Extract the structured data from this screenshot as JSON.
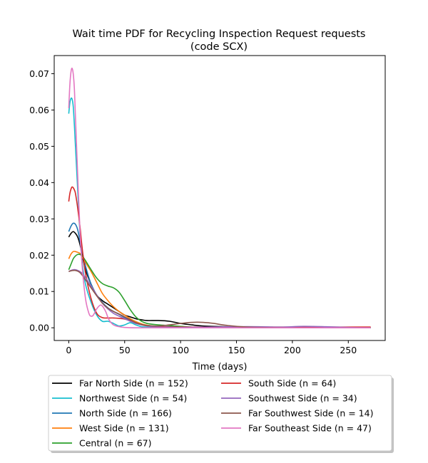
{
  "chart_data": {
    "type": "line",
    "title_line1": "Wait time PDF for Recycling Inspection Request  requests",
    "title_line2": "(code SCX)",
    "xlabel": "Time (days)",
    "ylabel": "",
    "xlim": [
      -13,
      283
    ],
    "ylim": [
      -0.0035,
      0.075
    ],
    "xticks": [
      0,
      50,
      100,
      150,
      200,
      250
    ],
    "xtick_labels": [
      "0",
      "50",
      "100",
      "150",
      "200",
      "250"
    ],
    "yticks": [
      0.0,
      0.01,
      0.02,
      0.03,
      0.04,
      0.05,
      0.06,
      0.07
    ],
    "ytick_labels": [
      "0.00",
      "0.01",
      "0.02",
      "0.03",
      "0.04",
      "0.05",
      "0.06",
      "0.07"
    ],
    "grid": false,
    "legend_position": "below",
    "series": [
      {
        "name": "Far North Side (n = 152)",
        "color": "#000000",
        "x": [
          0,
          2,
          4,
          6,
          8,
          10,
          12,
          15,
          20,
          25,
          30,
          35,
          40,
          45,
          50,
          55,
          60,
          65,
          70,
          80,
          90,
          100,
          110,
          120,
          140,
          160,
          200,
          240,
          270
        ],
        "y": [
          0.025,
          0.026,
          0.0265,
          0.026,
          0.025,
          0.023,
          0.02,
          0.016,
          0.012,
          0.009,
          0.0075,
          0.0065,
          0.0055,
          0.0045,
          0.0035,
          0.003,
          0.0025,
          0.0022,
          0.002,
          0.002,
          0.0018,
          0.0012,
          0.0008,
          0.0005,
          0.0003,
          0.0002,
          0.0001,
          0.0001,
          0.0
        ]
      },
      {
        "name": "Northwest Side (n = 54)",
        "color": "#17becf",
        "x": [
          0,
          1,
          2,
          3,
          4,
          5,
          6,
          8,
          10,
          12,
          15,
          20,
          25,
          30,
          35,
          40,
          45,
          50,
          55,
          60,
          65,
          70,
          80,
          100,
          150,
          200,
          270
        ],
        "y": [
          0.059,
          0.062,
          0.0632,
          0.063,
          0.061,
          0.056,
          0.05,
          0.038,
          0.026,
          0.018,
          0.012,
          0.007,
          0.0035,
          0.0018,
          0.0018,
          0.0012,
          0.0005,
          0.0008,
          0.0014,
          0.0008,
          0.0003,
          0.0002,
          0.0001,
          0.0,
          0.0,
          0.0,
          0.0
        ]
      },
      {
        "name": "North Side (n = 166)",
        "color": "#1f77b4",
        "x": [
          0,
          2,
          4,
          6,
          8,
          10,
          12,
          15,
          20,
          25,
          30,
          35,
          40,
          45,
          50,
          55,
          60,
          65,
          70,
          80,
          100,
          120,
          150,
          200,
          270
        ],
        "y": [
          0.0265,
          0.028,
          0.0288,
          0.0285,
          0.027,
          0.024,
          0.021,
          0.017,
          0.012,
          0.009,
          0.007,
          0.0055,
          0.0045,
          0.0037,
          0.0028,
          0.002,
          0.0015,
          0.001,
          0.0007,
          0.0004,
          0.0002,
          0.0001,
          0.0001,
          0.0,
          0.0
        ]
      },
      {
        "name": "West Side (n = 131)",
        "color": "#ff7f0e",
        "x": [
          0,
          2,
          4,
          6,
          8,
          10,
          12,
          15,
          20,
          25,
          30,
          35,
          40,
          45,
          50,
          55,
          60,
          65,
          70,
          80,
          100,
          150,
          200,
          270
        ],
        "y": [
          0.019,
          0.0203,
          0.021,
          0.021,
          0.0208,
          0.0205,
          0.0195,
          0.018,
          0.0155,
          0.0125,
          0.0095,
          0.0075,
          0.0058,
          0.0045,
          0.0035,
          0.0025,
          0.0017,
          0.0011,
          0.0007,
          0.0003,
          0.0001,
          0.0001,
          0.0001,
          0.0002
        ]
      },
      {
        "name": "Central (n = 67)",
        "color": "#2ca02c",
        "x": [
          0,
          2,
          4,
          6,
          8,
          10,
          12,
          15,
          20,
          25,
          30,
          35,
          40,
          45,
          50,
          55,
          60,
          65,
          70,
          80,
          90,
          100,
          110,
          120,
          150,
          200,
          270
        ],
        "y": [
          0.016,
          0.0175,
          0.019,
          0.0198,
          0.0202,
          0.0202,
          0.0198,
          0.0185,
          0.016,
          0.0137,
          0.0122,
          0.0115,
          0.011,
          0.0098,
          0.0075,
          0.005,
          0.003,
          0.0018,
          0.0012,
          0.0008,
          0.0006,
          0.0004,
          0.0002,
          0.0001,
          0.0,
          0.0,
          0.0
        ]
      },
      {
        "name": "South Side (n = 64)",
        "color": "#d62728",
        "x": [
          0,
          1,
          2,
          3,
          4,
          5,
          6,
          8,
          10,
          12,
          15,
          20,
          25,
          30,
          35,
          40,
          45,
          50,
          55,
          60,
          70,
          80,
          100,
          150,
          200,
          270
        ],
        "y": [
          0.0348,
          0.037,
          0.0382,
          0.0388,
          0.0386,
          0.038,
          0.037,
          0.033,
          0.028,
          0.022,
          0.015,
          0.008,
          0.004,
          0.0028,
          0.0027,
          0.0027,
          0.0026,
          0.0024,
          0.0019,
          0.0012,
          0.0006,
          0.0003,
          0.0002,
          0.0002,
          0.0002,
          0.0002
        ]
      },
      {
        "name": "Southwest Side (n = 34)",
        "color": "#9467bd",
        "x": [
          0,
          2,
          4,
          6,
          8,
          10,
          12,
          15,
          20,
          25,
          30,
          35,
          40,
          45,
          50,
          55,
          60,
          65,
          70,
          80,
          100,
          130,
          150,
          170,
          190,
          210,
          230,
          250,
          270
        ],
        "y": [
          0.0155,
          0.0158,
          0.016,
          0.016,
          0.0158,
          0.0155,
          0.015,
          0.0138,
          0.0115,
          0.009,
          0.0068,
          0.0052,
          0.004,
          0.0032,
          0.0025,
          0.0018,
          0.0012,
          0.0008,
          0.0005,
          0.0002,
          0.0001,
          0.0002,
          0.0003,
          0.0003,
          0.0002,
          0.0004,
          0.0003,
          0.0001,
          0.0
        ]
      },
      {
        "name": "Far Southwest Side (n = 14)",
        "color": "#8c564b",
        "x": [
          0,
          2,
          4,
          6,
          8,
          10,
          12,
          15,
          20,
          25,
          30,
          35,
          40,
          45,
          50,
          55,
          60,
          65,
          70,
          80,
          90,
          100,
          110,
          120,
          130,
          140,
          160,
          200,
          270
        ],
        "y": [
          0.0155,
          0.0157,
          0.0158,
          0.0158,
          0.0156,
          0.0152,
          0.0145,
          0.0132,
          0.011,
          0.0088,
          0.0068,
          0.0054,
          0.0045,
          0.0038,
          0.003,
          0.0022,
          0.0014,
          0.0009,
          0.0006,
          0.0005,
          0.0008,
          0.0012,
          0.0015,
          0.0015,
          0.0012,
          0.0007,
          0.0002,
          0.0,
          0.0
        ]
      },
      {
        "name": "Far Southeast Side (n = 47)",
        "color": "#e377c2",
        "x": [
          0,
          1,
          2,
          3,
          4,
          5,
          6,
          8,
          10,
          12,
          15,
          18,
          20,
          22,
          25,
          28,
          30,
          33,
          36,
          40,
          45,
          50,
          60,
          80,
          100,
          150,
          200,
          270
        ],
        "y": [
          0.0605,
          0.067,
          0.0705,
          0.0715,
          0.07,
          0.066,
          0.058,
          0.042,
          0.027,
          0.017,
          0.008,
          0.004,
          0.0032,
          0.0035,
          0.0052,
          0.0062,
          0.006,
          0.0045,
          0.0022,
          0.0008,
          0.0003,
          0.0001,
          0.0,
          0.0,
          0.0,
          0.0,
          0.0,
          0.0
        ]
      }
    ]
  }
}
